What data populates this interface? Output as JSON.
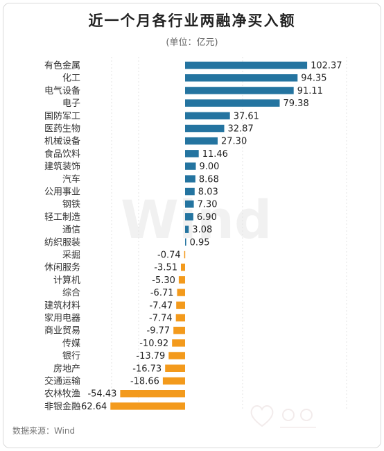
{
  "title": "近一个月各行业两融净买入额",
  "subtitle": "(单位：亿元)",
  "source": "数据来源：Wind",
  "watermark": "Wind",
  "colors": {
    "positive": "#2474a0",
    "negative": "#f39a1c",
    "grid": "#e3e3e3"
  },
  "chart_data": {
    "type": "bar",
    "orientation": "horizontal",
    "title": "近一个月各行业两融净买入额",
    "subtitle": "(单位：亿元)",
    "xlim": [
      -70,
      110
    ],
    "grid": true,
    "categories": [
      "有色金属",
      "化工",
      "电气设备",
      "电子",
      "国防军工",
      "医药生物",
      "机械设备",
      "食品饮料",
      "建筑装饰",
      "汽车",
      "公用事业",
      "钢铁",
      "轻工制造",
      "通信",
      "纺织服装",
      "采掘",
      "休闲服务",
      "计算机",
      "综合",
      "建筑材料",
      "家用电器",
      "商业贸易",
      "传媒",
      "银行",
      "房地产",
      "交通运输",
      "农林牧渔",
      "非银金融"
    ],
    "values": [
      102.37,
      94.35,
      91.11,
      79.38,
      37.61,
      32.87,
      27.3,
      11.46,
      9.0,
      8.68,
      8.03,
      7.3,
      6.9,
      3.08,
      0.95,
      -0.74,
      -3.51,
      -5.3,
      -6.71,
      -7.47,
      -7.74,
      -9.77,
      -10.92,
      -13.79,
      -16.73,
      -18.66,
      -54.43,
      -62.64
    ],
    "labels": [
      "102.37",
      "94.35",
      "91.11",
      "79.38",
      "37.61",
      "32.87",
      "27.30",
      "11.46",
      "9.00",
      "8.68",
      "8.03",
      "7.30",
      "6.90",
      "3.08",
      "0.95",
      "-0.74",
      "-3.51",
      "-5.30",
      "-6.71",
      "-7.47",
      "-7.74",
      "-9.77",
      "-10.92",
      "-13.79",
      "-16.73",
      "-18.66",
      "-54.43",
      "-62.64"
    ]
  }
}
